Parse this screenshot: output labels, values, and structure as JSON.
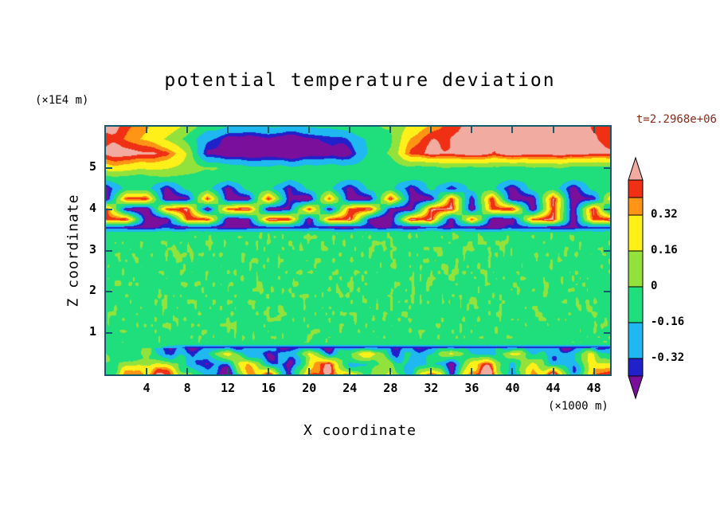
{
  "title": "potential temperature deviation",
  "time_label": "t=2.2968e+06",
  "axes": {
    "x_label": "X coordinate",
    "x_unit": "(×1000 m)",
    "x_ticks": [
      4,
      8,
      12,
      16,
      20,
      24,
      28,
      32,
      36,
      40,
      44,
      48
    ],
    "z_label": "Z coordinate",
    "z_unit": "(×1E4 m)",
    "z_ticks": [
      1,
      2,
      3,
      4,
      5
    ]
  },
  "colors": {
    "frame": "#135a6b",
    "text": "#000000",
    "time": "#8b2a1a",
    "background": "#ffffff"
  },
  "colorbar": {
    "labels": [
      "0.32",
      "0.16",
      "0",
      "-0.16",
      "-0.32"
    ],
    "segment_colors_top_to_bottom": [
      "#f2aba0",
      "#f03014",
      "#ff9415",
      "#fff01a",
      "#93e23c",
      "#1fde7c",
      "#1fb8f0",
      "#2121cc",
      "#7a0f9c"
    ]
  },
  "chart_data": {
    "type": "heatmap",
    "title": "potential temperature deviation",
    "xlabel": "X coordinate (×1000 m)",
    "ylabel": "Z coordinate (×1E4 m)",
    "time": "t=2.2968e+06",
    "xlim": [
      0,
      49.6
    ],
    "zlim": [
      0,
      6.0
    ],
    "x_step_km": 2,
    "z_levels": [
      0,
      0.25,
      0.5,
      0.66,
      0.74,
      1.2,
      1.8,
      2.4,
      3.0,
      3.42,
      3.56,
      3.75,
      4.0,
      4.25,
      4.5,
      4.75,
      5.0,
      5.35,
      5.7,
      6.0
    ],
    "contour_levels": [
      -0.4,
      -0.32,
      -0.16,
      0,
      0.16,
      0.32,
      0.4,
      0.48
    ],
    "colors": [
      "#7a0f9c",
      "#2121cc",
      "#1fb8f0",
      "#1fde7c",
      "#93e23c",
      "#fff01a",
      "#ff9415",
      "#f03014",
      "#f2aba0"
    ],
    "values": [
      [
        -0.05,
        0.3,
        0.45,
        0.4,
        0.1,
        -0.3,
        -0.5,
        0.2,
        0.45,
        -0.45,
        0.5,
        0.35,
        0.45,
        -0.2,
        0.3,
        -0.25,
        0.45,
        -0.3,
        0.4,
        0.5,
        -0.45,
        0.3,
        0.45,
        -0.2,
        0.4,
        0.45
      ],
      [
        -0.06,
        0.1,
        0.3,
        0.2,
        -0.2,
        -0.45,
        -0.3,
        0.35,
        -0.25,
        -0.5,
        0.3,
        0.45,
        -0.3,
        -0.25,
        0.2,
        -0.3,
        -0.25,
        -0.45,
        0.25,
        0.35,
        -0.3,
        0.2,
        -0.25,
        -0.3,
        0.3,
        0.2
      ],
      [
        -0.06,
        -0.05,
        0.15,
        -0.2,
        -0.3,
        -0.2,
        0.2,
        -0.3,
        -0.45,
        -0.2,
        0.25,
        -0.3,
        -0.2,
        0.3,
        -0.25,
        -0.2,
        -0.3,
        0.2,
        -0.25,
        -0.3,
        0.25,
        -0.2,
        -0.3,
        -0.25,
        0.2,
        -0.25
      ],
      [
        -0.06,
        -0.06,
        -0.07,
        -0.2,
        -0.36,
        -0.38,
        -0.36,
        -0.38,
        -0.36,
        -0.36,
        -0.38,
        -0.36,
        -0.38,
        -0.36,
        -0.36,
        -0.38,
        -0.36,
        -0.36,
        -0.38,
        -0.36,
        -0.36,
        -0.38,
        -0.36,
        -0.38,
        -0.36,
        -0.36
      ],
      [
        -0.07,
        -0.06,
        -0.07,
        -0.08,
        -0.07,
        -0.06,
        -0.07,
        -0.06,
        -0.07,
        -0.08,
        -0.06,
        -0.07,
        -0.06,
        -0.07,
        -0.08,
        -0.06,
        -0.07,
        -0.06,
        -0.08,
        -0.07,
        -0.06,
        -0.07,
        -0.08,
        -0.06,
        -0.07,
        -0.06
      ],
      [
        -0.06,
        -0.05,
        -0.06,
        -0.04,
        -0.06,
        -0.05,
        -0.03,
        -0.06,
        -0.05,
        -0.06,
        -0.04,
        -0.05,
        -0.06,
        -0.05,
        -0.04,
        -0.06,
        -0.05,
        -0.06,
        -0.04,
        -0.05,
        -0.06,
        -0.05,
        -0.04,
        -0.06,
        -0.05,
        -0.06
      ],
      [
        -0.05,
        -0.06,
        -0.04,
        -0.06,
        -0.05,
        -0.04,
        -0.06,
        -0.05,
        -0.03,
        -0.05,
        -0.06,
        -0.04,
        -0.05,
        -0.06,
        -0.05,
        -0.04,
        -0.06,
        -0.05,
        -0.04,
        -0.06,
        -0.05,
        -0.04,
        -0.06,
        -0.05,
        -0.04,
        -0.05
      ],
      [
        -0.06,
        -0.04,
        -0.05,
        -0.06,
        -0.04,
        -0.05,
        -0.03,
        -0.04,
        -0.06,
        -0.05,
        -0.04,
        -0.06,
        -0.03,
        -0.05,
        -0.06,
        -0.04,
        -0.05,
        -0.03,
        -0.06,
        -0.04,
        -0.05,
        -0.06,
        -0.04,
        -0.05,
        -0.06,
        -0.04
      ],
      [
        -0.05,
        -0.06,
        -0.04,
        -0.05,
        -0.03,
        -0.06,
        -0.05,
        -0.04,
        -0.05,
        -0.03,
        -0.06,
        -0.04,
        -0.05,
        -0.03,
        -0.04,
        -0.06,
        -0.05,
        -0.04,
        -0.03,
        -0.05,
        -0.06,
        -0.04,
        -0.05,
        -0.04,
        -0.06,
        -0.05
      ],
      [
        -0.06,
        -0.06,
        -0.05,
        -0.06,
        -0.06,
        -0.05,
        -0.06,
        -0.06,
        -0.05,
        -0.06,
        -0.06,
        -0.05,
        -0.06,
        -0.06,
        -0.05,
        -0.06,
        -0.06,
        -0.05,
        -0.06,
        -0.06,
        -0.05,
        -0.06,
        -0.06,
        -0.05,
        -0.06,
        -0.06
      ],
      [
        -0.36,
        -0.4,
        -0.44,
        -0.38,
        -0.42,
        -0.36,
        -0.44,
        -0.4,
        -0.38,
        -0.44,
        -0.36,
        -0.42,
        -0.44,
        -0.38,
        -0.4,
        -0.44,
        -0.36,
        -0.42,
        -0.38,
        -0.44,
        -0.4,
        -0.36,
        -0.44,
        -0.42,
        -0.38,
        -0.4
      ],
      [
        0.45,
        0.5,
        -0.45,
        -0.5,
        0.45,
        0.5,
        -0.5,
        -0.45,
        0.5,
        0.45,
        -0.5,
        0.45,
        0.5,
        -0.45,
        -0.5,
        0.5,
        0.45,
        -0.5,
        0.45,
        -0.45,
        -0.5,
        0.45,
        0.5,
        -0.5,
        0.45,
        0.5
      ],
      [
        0.5,
        -0.45,
        -0.5,
        0.45,
        0.5,
        -0.5,
        0.45,
        0.5,
        -0.5,
        -0.45,
        0.5,
        -0.45,
        0.45,
        0.5,
        -0.45,
        -0.5,
        0.45,
        0.5,
        -0.5,
        0.45,
        0.5,
        -0.5,
        0.45,
        -0.45,
        0.5,
        -0.5
      ],
      [
        -0.5,
        0.45,
        0.5,
        -0.5,
        -0.45,
        0.5,
        -0.45,
        -0.5,
        0.5,
        -0.45,
        -0.5,
        0.45,
        -0.5,
        -0.45,
        0.5,
        -0.45,
        -0.5,
        0.45,
        -0.45,
        0.5,
        -0.5,
        -0.45,
        0.5,
        -0.5,
        -0.45,
        0.5
      ],
      [
        -0.45,
        -0.1,
        -0.08,
        -0.45,
        -0.1,
        -0.08,
        -0.45,
        -0.08,
        -0.1,
        -0.45,
        -0.08,
        -0.1,
        -0.45,
        -0.1,
        -0.08,
        -0.45,
        -0.1,
        -0.45,
        -0.08,
        -0.1,
        -0.45,
        -0.08,
        -0.1,
        -0.45,
        -0.08,
        -0.1
      ],
      [
        -0.08,
        -0.07,
        -0.08,
        -0.06,
        -0.08,
        -0.07,
        -0.06,
        -0.08,
        -0.07,
        -0.08,
        -0.06,
        -0.07,
        -0.08,
        -0.07,
        -0.06,
        -0.08,
        -0.07,
        -0.06,
        -0.08,
        -0.07,
        -0.06,
        -0.08,
        -0.07,
        -0.06,
        -0.08,
        -0.07
      ],
      [
        0.25,
        0.25,
        0.2,
        0.15,
        0.08,
        0.02,
        -0.05,
        -0.1,
        -0.12,
        -0.1,
        -0.1,
        -0.08,
        -0.06,
        -0.06,
        -0.05,
        -0.04,
        -0.03,
        -0.04,
        -0.03,
        -0.04,
        -0.02,
        -0.04,
        -0.03,
        -0.02,
        -0.03,
        -0.04
      ],
      [
        0.5,
        0.55,
        0.5,
        0.45,
        0.15,
        -0.45,
        -0.5,
        -0.55,
        -0.5,
        -0.55,
        -0.5,
        -0.5,
        -0.45,
        -0.1,
        0.05,
        0.4,
        0.5,
        0.5,
        0.55,
        0.5,
        0.55,
        0.5,
        0.5,
        0.55,
        0.5,
        0.5
      ],
      [
        0.45,
        0.4,
        0.3,
        0.15,
        -0.05,
        -0.3,
        -0.45,
        -0.5,
        -0.45,
        -0.5,
        -0.45,
        -0.4,
        -0.3,
        -0.1,
        0.0,
        0.3,
        0.45,
        0.5,
        0.5,
        0.55,
        0.5,
        0.5,
        0.55,
        0.5,
        0.5,
        0.45
      ],
      [
        0.5,
        0.45,
        0.35,
        0.25,
        0.1,
        -0.08,
        -0.15,
        -0.2,
        -0.15,
        -0.2,
        -0.15,
        -0.12,
        -0.1,
        -0.05,
        0.0,
        0.2,
        0.35,
        0.45,
        0.5,
        0.5,
        0.55,
        0.5,
        0.5,
        0.55,
        0.5,
        0.5
      ]
    ],
    "noise_regions": [
      {
        "z_min": 0.0,
        "z_max": 0.64,
        "amp": 0.2,
        "fx": 0.9,
        "fz": 3.5
      },
      {
        "z_min": 0.78,
        "z_max": 3.44,
        "amp": 0.09,
        "fx": 2.8,
        "fz": 7.0
      },
      {
        "z_min": 3.44,
        "z_max": 6.0,
        "amp": 0.04,
        "fx": 0.8,
        "fz": 1.5
      }
    ],
    "legend_position": "right-colorbar",
    "grid": false
  }
}
